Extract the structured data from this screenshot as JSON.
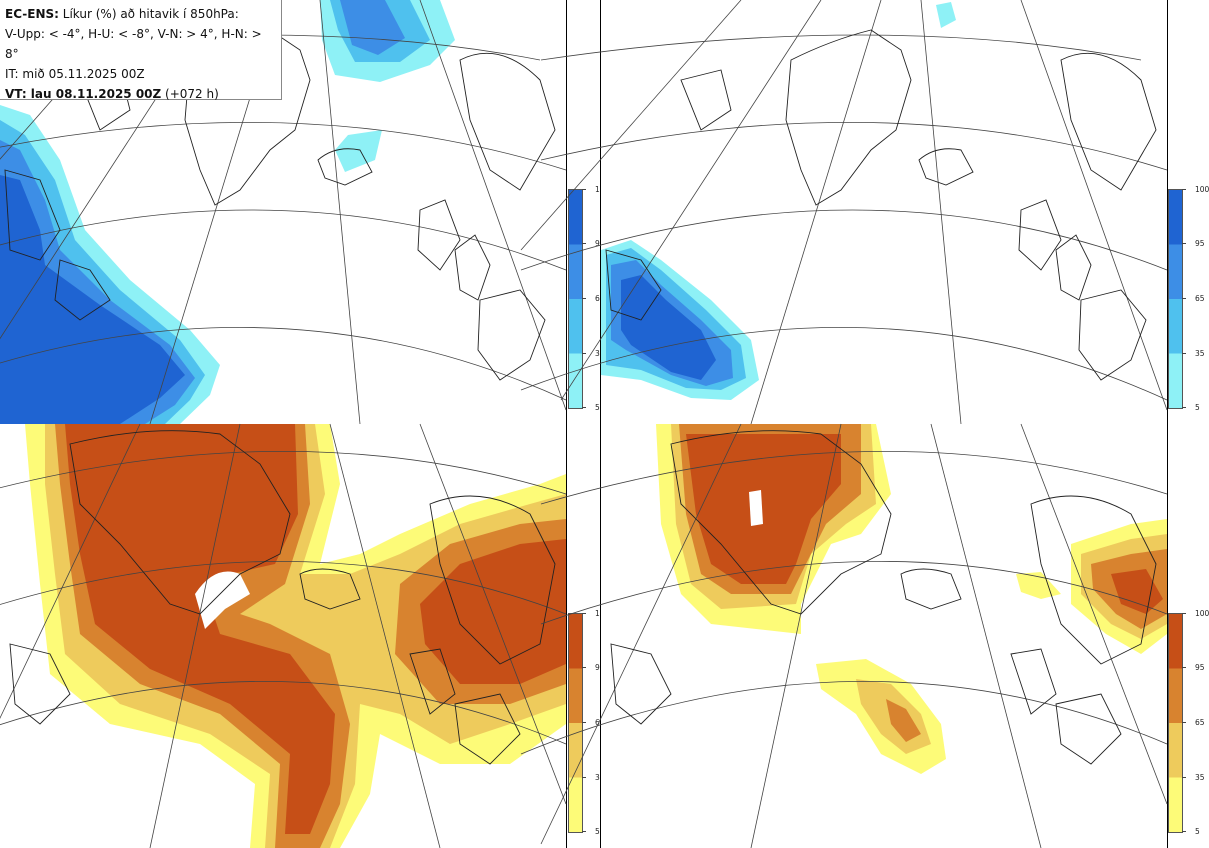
{
  "header": {
    "product": "EC-ENS:",
    "title": "Líkur (%) að hitavik í 850hPa:",
    "thresholds": "V-Upp: < -4°, H-U: < -8°, V-N: > 4°, H-N: > 8°",
    "init_time": "IT: mið 05.11.2025 00Z",
    "valid_time_label": "VT: lau 08.11.2025 00Z",
    "lead_time": "(+072 h)"
  },
  "legend": {
    "ticks": [
      "100",
      "95",
      "65",
      "35",
      "5"
    ],
    "cold_colors": [
      "#1f64d2",
      "#3d8ee6",
      "#4fc1ee",
      "#8ef1f6"
    ],
    "warm_colors": [
      "#c64f17",
      "#d8832f",
      "#eecb5c",
      "#fdfb78"
    ]
  },
  "panels": [
    {
      "id": "V-Upp",
      "palette": "cold"
    },
    {
      "id": "H-U",
      "palette": "cold"
    },
    {
      "id": "V-N",
      "palette": "warm"
    },
    {
      "id": "H-N",
      "palette": "warm"
    }
  ]
}
